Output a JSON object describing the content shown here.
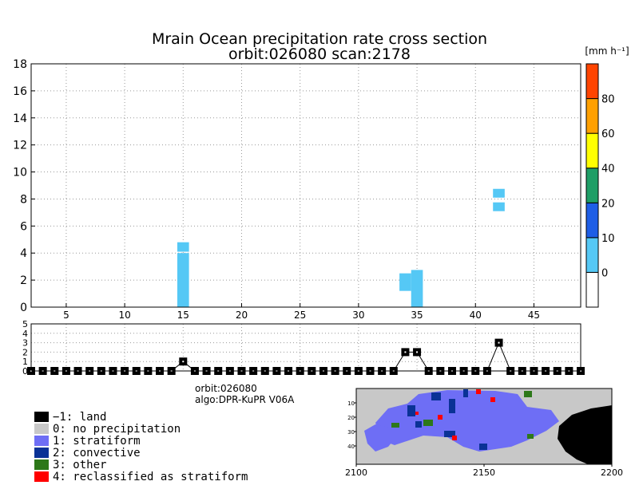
{
  "chart_data": [
    {
      "type": "heatmap",
      "title_line1": "Mrain Ocean precipitation rate cross section",
      "title_line2": "orbit:026080    scan:2178",
      "xlim": [
        2,
        49
      ],
      "ylim": [
        0,
        18
      ],
      "xticks": [
        "5",
        "10",
        "15",
        "20",
        "25",
        "30",
        "35",
        "40",
        "45"
      ],
      "yticks": [
        "0",
        "2",
        "4",
        "6",
        "8",
        "10",
        "12",
        "14",
        "16",
        "18"
      ],
      "grid": true,
      "cells": [
        {
          "x": 15,
          "y0": 0.0,
          "y1": 4.0,
          "rate": 5
        },
        {
          "x": 15,
          "y0": 4.1,
          "y1": 4.8,
          "rate": 5
        },
        {
          "x": 34,
          "y0": 1.2,
          "y1": 2.5,
          "rate": 5
        },
        {
          "x": 35,
          "y0": 0.0,
          "y1": 2.75,
          "rate": 5
        },
        {
          "x": 42,
          "y0": 8.1,
          "y1": 8.75,
          "rate": 5
        },
        {
          "x": 42,
          "y0": 7.1,
          "y1": 7.75,
          "rate": 5
        }
      ],
      "colorbar": {
        "unit": "[mm h⁻¹]",
        "labels": [
          "0",
          "10",
          "20",
          "40",
          "60",
          "80"
        ],
        "colors": [
          "#ffffff",
          "#55c8f5",
          "#1e5ee6",
          "#1e9e66",
          "#ffff00",
          "#ffa000",
          "#ff4400"
        ]
      }
    },
    {
      "type": "line",
      "ylim": [
        0,
        5
      ],
      "yticks": [
        "0",
        "1",
        "2",
        "3",
        "4",
        "5"
      ],
      "x": [
        2,
        3,
        4,
        5,
        6,
        7,
        8,
        9,
        10,
        11,
        12,
        13,
        14,
        15,
        16,
        17,
        18,
        19,
        20,
        21,
        22,
        23,
        24,
        25,
        26,
        27,
        28,
        29,
        30,
        31,
        32,
        33,
        34,
        35,
        36,
        37,
        38,
        39,
        40,
        41,
        42,
        43,
        44,
        45,
        46,
        47,
        48,
        49
      ],
      "values": [
        0,
        0,
        0,
        0,
        0,
        0,
        0,
        0,
        0,
        0,
        0,
        0,
        0,
        1,
        0,
        0,
        0,
        0,
        0,
        0,
        0,
        0,
        0,
        0,
        0,
        0,
        0,
        0,
        0,
        0,
        0,
        0,
        2,
        2,
        0,
        0,
        0,
        0,
        0,
        0,
        3,
        0,
        0,
        0,
        0,
        0,
        0,
        0
      ]
    }
  ],
  "info": {
    "orbit": "orbit:026080",
    "algo": "algo:DPR-KuPR  V06A"
  },
  "legend": [
    {
      "label": "−1: land",
      "color": "#000000"
    },
    {
      "label": "0: no precipitation",
      "color": "#c8c8c8"
    },
    {
      "label": "1: stratiform",
      "color": "#6e6ef5"
    },
    {
      "label": "2: convective",
      "color": "#0a3296"
    },
    {
      "label": "3: other",
      "color": "#2d7819"
    },
    {
      "label": "4: reclassified as stratiform",
      "color": "#ff0000"
    }
  ],
  "map": {
    "xticks": [
      "2100",
      "2150",
      "2200"
    ],
    "yticks": [
      "10",
      "20",
      "30",
      "40"
    ]
  }
}
